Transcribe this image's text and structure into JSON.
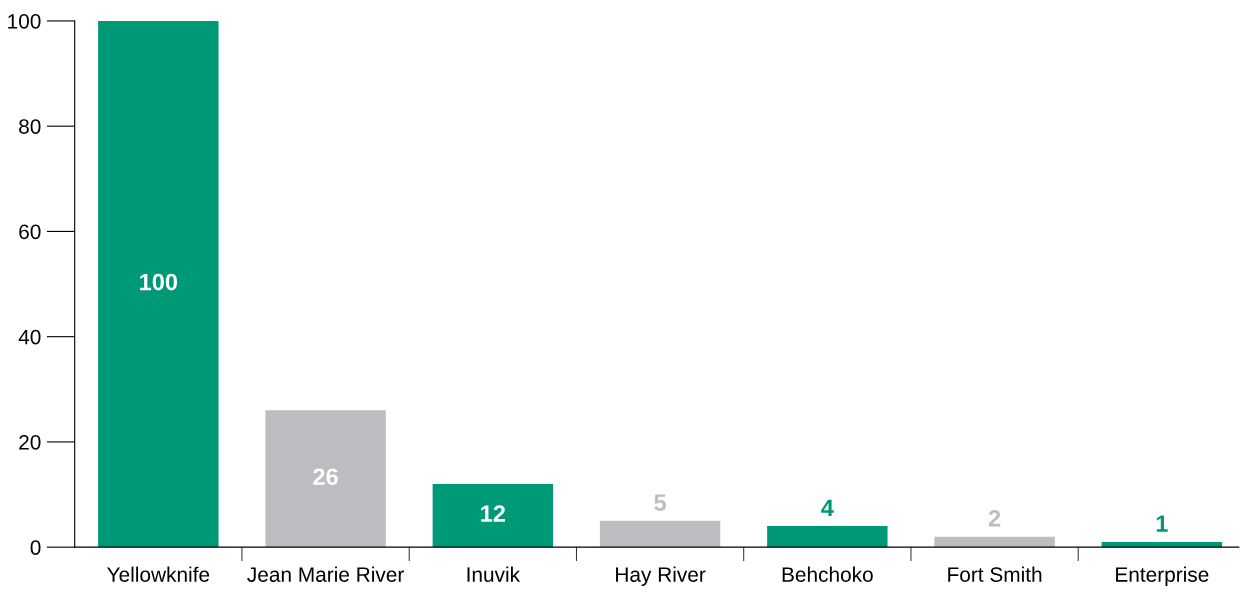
{
  "chart_data": {
    "type": "bar",
    "categories": [
      "Yellowknife",
      "Jean Marie River",
      "Inuvik",
      "Hay River",
      "Behchoko",
      "Fort Smith",
      "Enterprise"
    ],
    "values": [
      100,
      26,
      12,
      5,
      4,
      2,
      1
    ],
    "colors": [
      "#009977",
      "#bcbdc0",
      "#009977",
      "#bcbdc0",
      "#009977",
      "#bcbdc0",
      "#009977"
    ],
    "ylim": [
      0,
      100
    ],
    "yticks": [
      0,
      20,
      40,
      60,
      80,
      100
    ],
    "data_labels": true,
    "grid": false,
    "legend": false
  }
}
